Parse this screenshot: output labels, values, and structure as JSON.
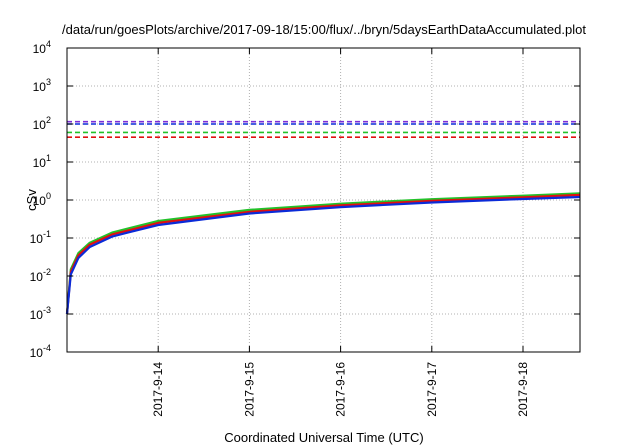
{
  "chart_data": {
    "type": "line",
    "title": "/data/run/goesPlots/archive/2017-09-18/15:00/flux/../bryn/5daysEarthDataAccumulated.plot",
    "xlabel": "Coordinated Universal Time (UTC)",
    "ylabel": "cSv",
    "yscale": "log",
    "ylim": [
      0.0001,
      10000
    ],
    "xlim": [
      "2017-09-13T00:00",
      "2017-09-18T15:00"
    ],
    "grid": true,
    "legend": "none",
    "y_ticks": [
      {
        "base": "10",
        "exp": "-4",
        "value": 0.0001
      },
      {
        "base": "10",
        "exp": "-3",
        "value": 0.001
      },
      {
        "base": "10",
        "exp": "-2",
        "value": 0.01
      },
      {
        "base": "10",
        "exp": "-1",
        "value": 0.1
      },
      {
        "base": "10",
        "exp": "0",
        "value": 1
      },
      {
        "base": "10",
        "exp": "1",
        "value": 10
      },
      {
        "base": "10",
        "exp": "2",
        "value": 100
      },
      {
        "base": "10",
        "exp": "3",
        "value": 1000
      },
      {
        "base": "10",
        "exp": "4",
        "value": 10000
      }
    ],
    "x_ticks": [
      {
        "label": "2017-9-14",
        "value": "2017-09-14T00:00"
      },
      {
        "label": "2017-9-15",
        "value": "2017-09-15T00:00"
      },
      {
        "label": "2017-9-16",
        "value": "2017-09-16T00:00"
      },
      {
        "label": "2017-9-17",
        "value": "2017-09-17T00:00"
      },
      {
        "label": "2017-9-18",
        "value": "2017-09-18T00:00"
      }
    ],
    "thresholds": [
      {
        "color": "#7b2fd6",
        "value": 115
      },
      {
        "color": "#0b2bd8",
        "value": 100
      },
      {
        "color": "#22c22a",
        "value": 60
      },
      {
        "color": "#e01010",
        "value": 45
      }
    ],
    "series": [
      {
        "color": "#22c22a",
        "x": [
          "2017-09-13T00:00",
          "2017-09-13T01:00",
          "2017-09-13T03:00",
          "2017-09-13T06:00",
          "2017-09-13T12:00",
          "2017-09-14T00:00",
          "2017-09-15T00:00",
          "2017-09-16T00:00",
          "2017-09-17T00:00",
          "2017-09-18T00:00",
          "2017-09-18T15:00"
        ],
        "y": [
          0.001,
          0.015,
          0.04,
          0.075,
          0.14,
          0.28,
          0.55,
          0.8,
          1.05,
          1.3,
          1.5
        ]
      },
      {
        "color": "#e01010",
        "x": [
          "2017-09-13T00:00",
          "2017-09-13T01:00",
          "2017-09-13T03:00",
          "2017-09-13T06:00",
          "2017-09-13T12:00",
          "2017-09-14T00:00",
          "2017-09-15T00:00",
          "2017-09-16T00:00",
          "2017-09-17T00:00",
          "2017-09-18T00:00",
          "2017-09-18T15:00"
        ],
        "y": [
          0.001,
          0.013,
          0.035,
          0.067,
          0.125,
          0.25,
          0.49,
          0.72,
          0.95,
          1.18,
          1.36
        ]
      },
      {
        "color": "#0b2bd8",
        "x": [
          "2017-09-13T00:00",
          "2017-09-13T01:00",
          "2017-09-13T03:00",
          "2017-09-13T06:00",
          "2017-09-13T12:00",
          "2017-09-14T00:00",
          "2017-09-15T00:00",
          "2017-09-16T00:00",
          "2017-09-17T00:00",
          "2017-09-18T00:00",
          "2017-09-18T15:00"
        ],
        "y": [
          0.001,
          0.011,
          0.03,
          0.058,
          0.11,
          0.22,
          0.44,
          0.65,
          0.86,
          1.06,
          1.2
        ]
      }
    ]
  }
}
